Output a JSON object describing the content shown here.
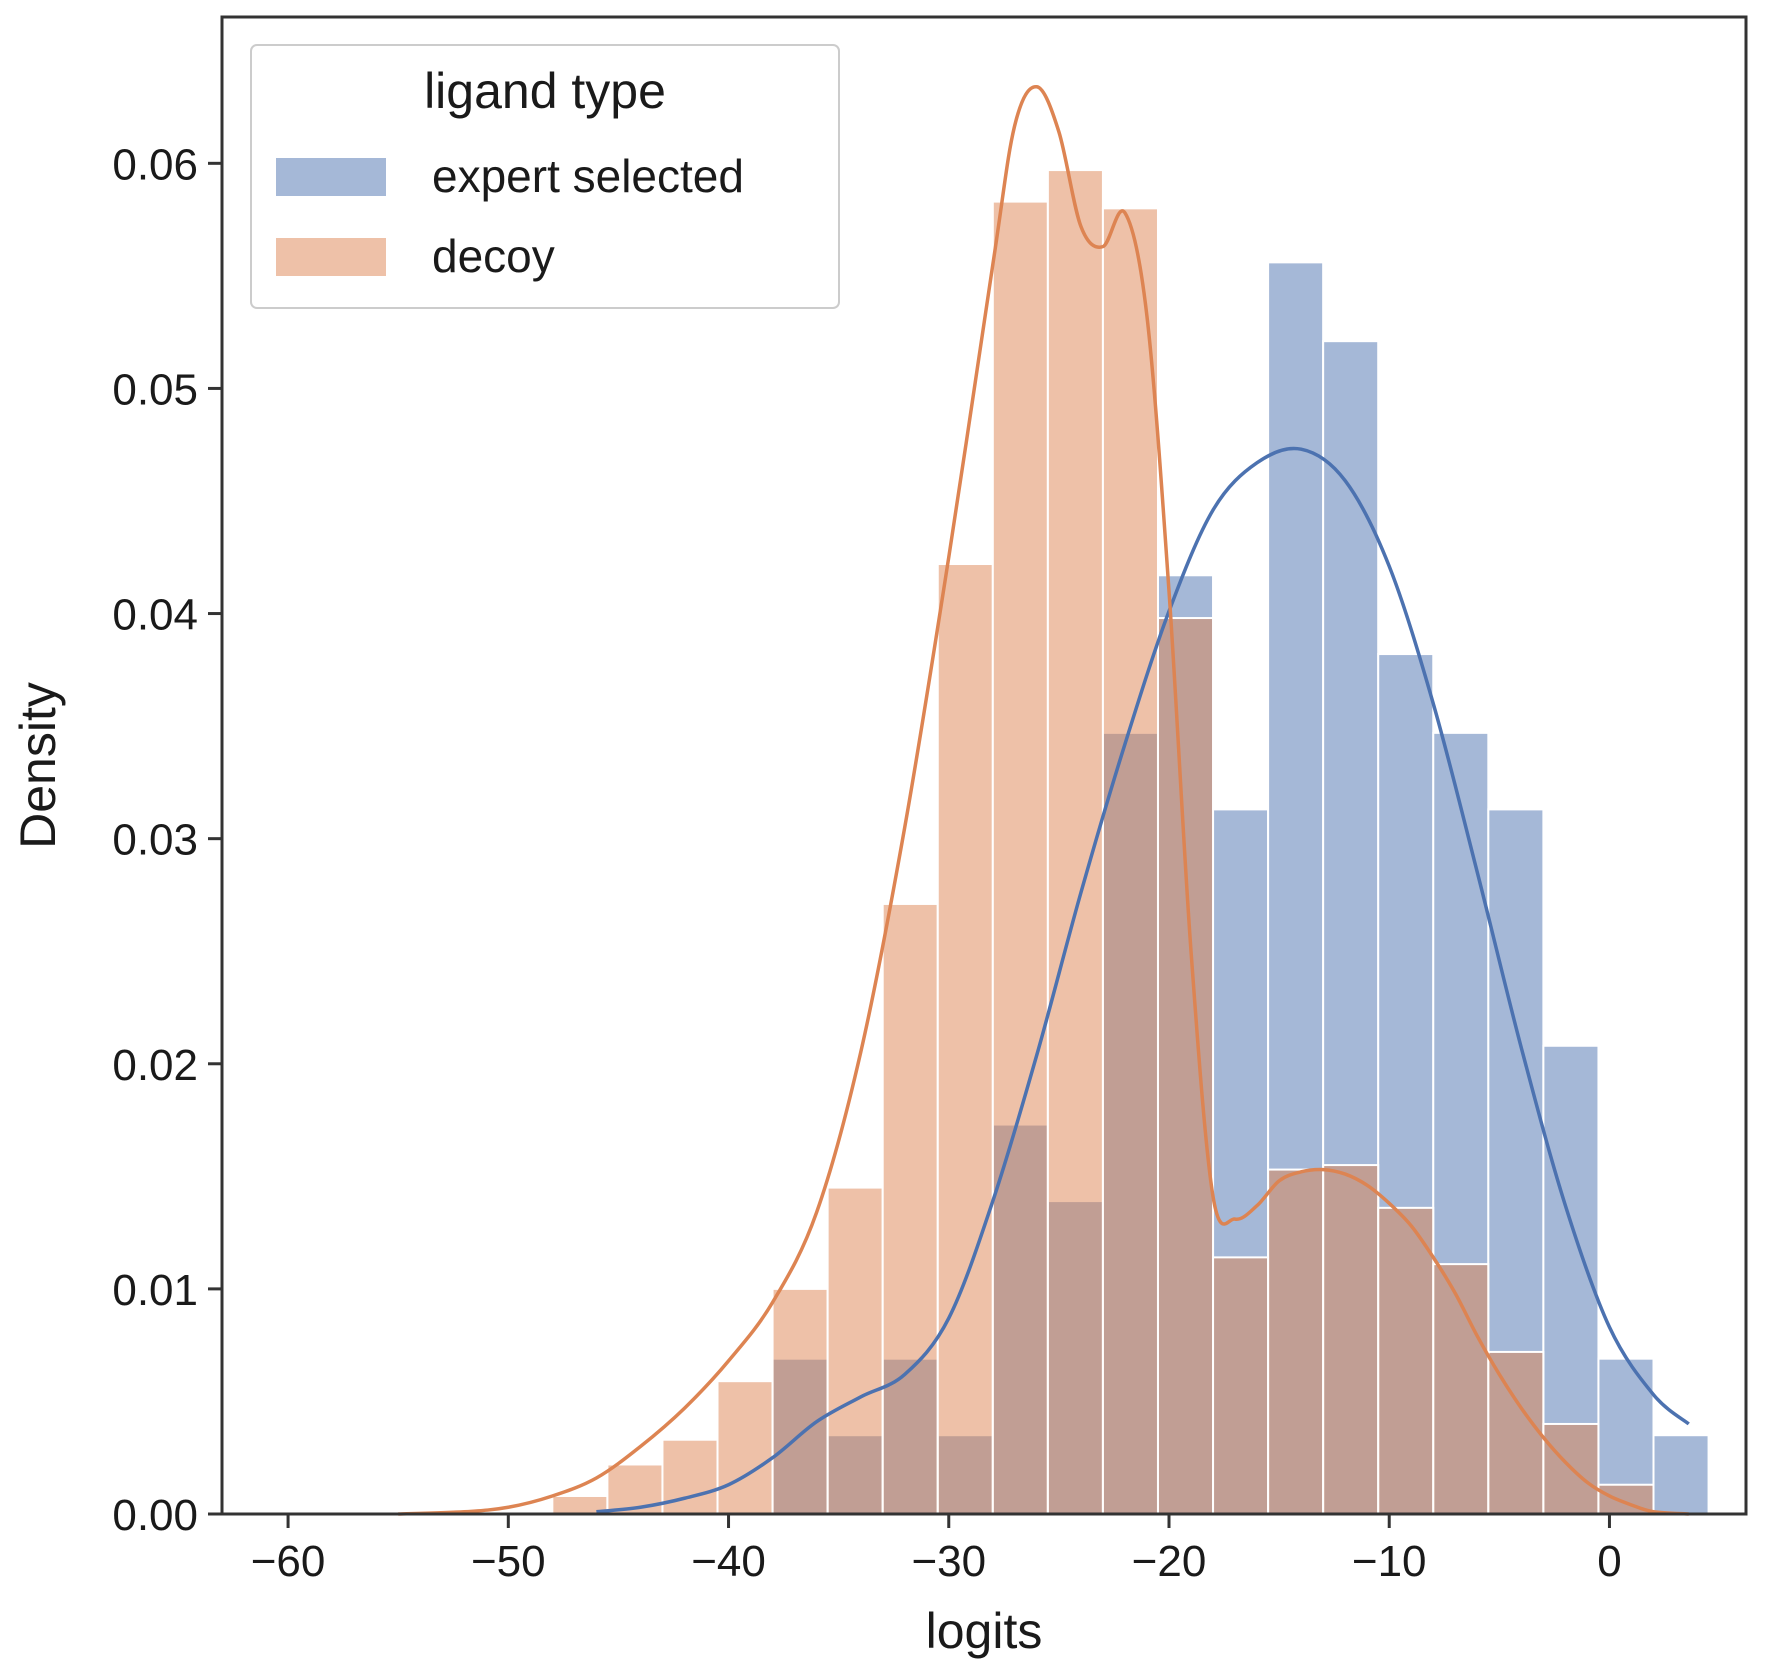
{
  "chart_data": {
    "type": "histogram",
    "title": "",
    "xlabel": "logits",
    "ylabel": "Density",
    "xlim": [
      -63.0,
      6.2
    ],
    "ylim": [
      0,
      0.0665
    ],
    "x_ticks": [
      -60,
      -50,
      -40,
      -30,
      -20,
      -10,
      0
    ],
    "x_tick_labels": [
      "−60",
      "−50",
      "−40",
      "−30",
      "−20",
      "−10",
      "0"
    ],
    "y_ticks": [
      0.0,
      0.01,
      0.02,
      0.03,
      0.04,
      0.05,
      0.06
    ],
    "y_tick_labels": [
      "0.00",
      "0.01",
      "0.02",
      "0.03",
      "0.04",
      "0.05",
      "0.06"
    ],
    "grid": false,
    "legend": {
      "title": "ligand type",
      "position": "top-left",
      "entries": [
        "expert selected",
        "decoy"
      ]
    },
    "bins": {
      "start": -48.0,
      "width": 2.5,
      "count": 21
    },
    "series": [
      {
        "name": "expert selected",
        "color": "#4c72b0",
        "fill_opacity": 0.5,
        "values": [
          0.0,
          0.0,
          0.0,
          0.0,
          0.0069,
          0.0035,
          0.0069,
          0.0035,
          0.0173,
          0.0139,
          0.0347,
          0.0417,
          0.0313,
          0.0556,
          0.0521,
          0.0382,
          0.0347,
          0.0313,
          0.0208,
          0.0069,
          0.0035
        ],
        "kde": {
          "x": [
            -46,
            -44,
            -42,
            -40,
            -38,
            -36,
            -34,
            -32,
            -30,
            -28,
            -26,
            -24,
            -22,
            -20,
            -18,
            -16,
            -14,
            -12,
            -10,
            -8,
            -6,
            -4,
            -2,
            0,
            2,
            3.6
          ],
          "y": [
            0.0001,
            0.0003,
            0.0007,
            0.0013,
            0.0025,
            0.0041,
            0.0052,
            0.0062,
            0.0087,
            0.0139,
            0.0204,
            0.0276,
            0.0342,
            0.0401,
            0.0446,
            0.0467,
            0.0473,
            0.0459,
            0.0421,
            0.036,
            0.0285,
            0.0207,
            0.0137,
            0.0083,
            0.0053,
            0.004
          ]
        }
      },
      {
        "name": "decoy",
        "color": "#dd8452",
        "fill_opacity": 0.5,
        "values": [
          0.0008,
          0.0022,
          0.0033,
          0.0059,
          0.01,
          0.0145,
          0.0271,
          0.0422,
          0.0583,
          0.0597,
          0.058,
          0.0398,
          0.0114,
          0.0153,
          0.0155,
          0.0136,
          0.0111,
          0.0072,
          0.004,
          0.0013,
          0.0
        ],
        "kde": {
          "x": [
            -55,
            -52,
            -50,
            -48,
            -46,
            -44,
            -42,
            -40,
            -38,
            -36,
            -34,
            -32,
            -30,
            -28,
            -27,
            -26,
            -25,
            -24,
            -23,
            -22,
            -21,
            -20,
            -19,
            -18,
            -17,
            -16,
            -15,
            -14,
            -13,
            -12,
            -11,
            -10,
            -9,
            -8,
            -7,
            -6,
            -5,
            -4,
            -3,
            -2,
            -1,
            0,
            1,
            2,
            3.6
          ],
          "y": [
            0.0,
            0.0001,
            0.0003,
            0.0008,
            0.0016,
            0.003,
            0.0047,
            0.0068,
            0.0094,
            0.0134,
            0.0205,
            0.0305,
            0.0425,
            0.0555,
            0.0617,
            0.0634,
            0.0614,
            0.0572,
            0.0563,
            0.0578,
            0.0532,
            0.041,
            0.025,
            0.0141,
            0.0131,
            0.0137,
            0.0148,
            0.0152,
            0.0153,
            0.0151,
            0.0146,
            0.0138,
            0.0128,
            0.0114,
            0.0098,
            0.0079,
            0.0062,
            0.0047,
            0.0034,
            0.0023,
            0.0014,
            0.0008,
            0.0004,
            0.0001,
            0.0
          ]
        }
      }
    ]
  }
}
